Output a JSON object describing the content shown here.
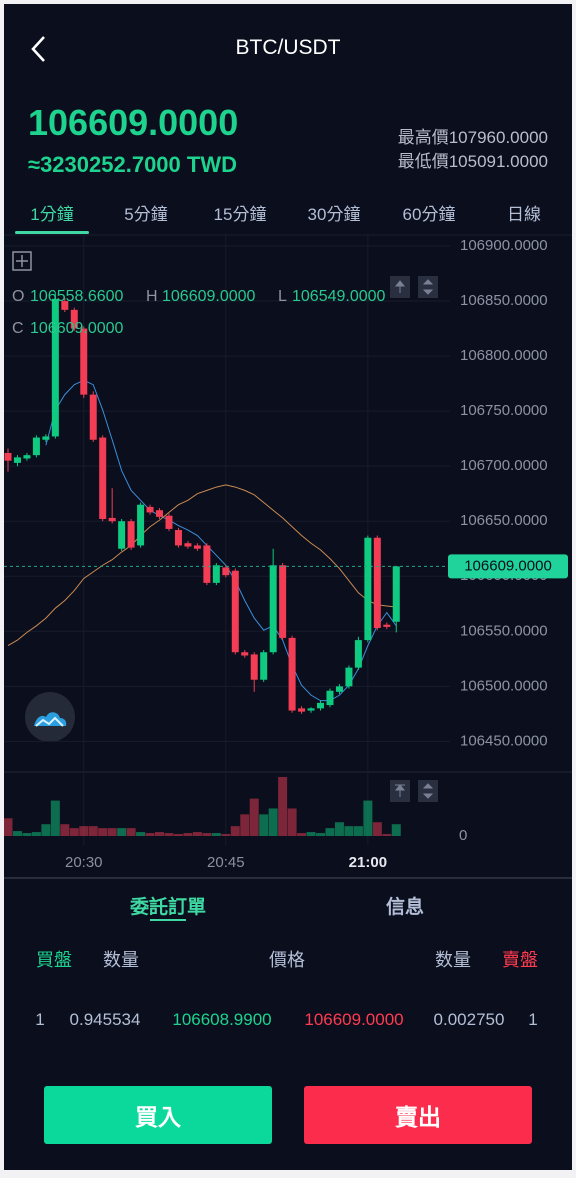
{
  "header": {
    "title": "BTC/USDT"
  },
  "ticker": {
    "price": "106609.0000",
    "converted": "≈3230252.7000 TWD",
    "high": "最高價107960.0000",
    "low": "最低價105091.0000"
  },
  "intervals": {
    "tabs": [
      "1分鐘",
      "5分鐘",
      "15分鐘",
      "30分鐘",
      "60分鐘",
      "日線"
    ],
    "active": 0
  },
  "chart": {
    "type": "candlestick",
    "grid": true,
    "up_color": "#0ecb81",
    "down_color": "#f23d55",
    "categories": [
      null,
      null,
      null,
      null,
      null,
      null,
      null,
      null,
      "20:30",
      null,
      null,
      null,
      null,
      null,
      null,
      null,
      null,
      null,
      null,
      null,
      null,
      null,
      null,
      "20:45",
      null,
      null,
      null,
      null,
      null,
      null,
      null,
      null,
      null,
      null,
      null,
      null,
      null,
      null,
      "21:00",
      null,
      null,
      null
    ],
    "open": [
      106712,
      106703,
      106707,
      106710,
      106724,
      106727,
      106850,
      106842,
      106825,
      106765,
      106726,
      106653,
      106625,
      106650,
      106628,
      106663,
      106660,
      106655,
      106642,
      106630,
      106628,
      106628,
      106594,
      106608,
      106605,
      106531,
      106529,
      106506,
      106531,
      106610,
      106544,
      106480,
      106478,
      106480,
      106483,
      106495,
      106500,
      106517,
      106542,
      106635,
      106556,
      106558.66
    ],
    "high": [
      106716,
      106710,
      106712,
      106728,
      106729,
      106858,
      106853,
      106844,
      106827,
      106768,
      106728,
      106680,
      106652,
      106652,
      106667,
      106665,
      106662,
      106657,
      106644,
      106632,
      106630,
      106630,
      106612,
      106610,
      106607,
      106533,
      106531,
      106533,
      106625,
      106612,
      106546,
      106482,
      106481,
      106487,
      106498,
      106502,
      106519,
      106545,
      106637,
      106637,
      106558,
      106609
    ],
    "low": [
      106695,
      106700,
      106705,
      106708,
      106722,
      106725,
      106840,
      106823,
      106762,
      106722,
      106650,
      106648,
      106623,
      106624,
      106626,
      106656,
      106652,
      106641,
      106626,
      106625,
      106623,
      106592,
      106592,
      106599,
      106529,
      106526,
      106495,
      106504,
      106529,
      106542,
      106476,
      106475,
      106476,
      106478,
      106481,
      106493,
      106498,
      106515,
      106540,
      106551,
      106552,
      106549
    ],
    "close": [
      106705,
      106708,
      106710,
      106726,
      106727,
      106852,
      106842,
      106825,
      106765,
      106724,
      106652,
      106650,
      106650,
      106626,
      106665,
      106658,
      106654,
      106643,
      106628,
      106627,
      106625,
      106594,
      106610,
      106601,
      106531,
      106528,
      106506,
      106531,
      106610,
      106544,
      106478,
      106477,
      106480,
      106485,
      106496,
      106500,
      106517,
      106542,
      106635,
      106553,
      106554,
      106609
    ],
    "ylim": [
      106424,
      106910
    ],
    "yticks": [
      {
        "value": 106900,
        "label": "106900.0000"
      },
      {
        "value": 106850,
        "label": "106850.0000"
      },
      {
        "value": 106800,
        "label": "106800.0000"
      },
      {
        "value": 106750,
        "label": "106750.0000"
      },
      {
        "value": 106700,
        "label": "106700.0000"
      },
      {
        "value": 106650,
        "label": "106650.0000"
      },
      {
        "value": 106600,
        "label": "106600.0000"
      },
      {
        "value": 106550,
        "label": "106550.0000"
      },
      {
        "value": 106500,
        "label": "106500.0000"
      },
      {
        "value": 106450,
        "label": "106450.0000"
      }
    ],
    "last_price": {
      "value": 106609,
      "label": "106609.0000"
    },
    "ohlc_legend": {
      "labels": [
        "O",
        "H",
        "L",
        "C"
      ],
      "values": [
        "106558.6600",
        "106609.0000",
        "106549.0000",
        "106609.0000"
      ]
    },
    "moving_averages": [
      {
        "color": "#3b8fdc",
        "values": [
          null,
          null,
          null,
          null,
          106719,
          106751,
          106765,
          106774,
          106778,
          106774,
          106751,
          106724,
          106696,
          106678,
          106669,
          106660,
          106655,
          106651,
          106646,
          106642,
          106637,
          106628,
          106619,
          106610,
          106596,
          106578,
          106562,
          106551,
          106555,
          106542,
          106519,
          106501,
          106492,
          106487,
          106487,
          106492,
          106501,
          106516,
          106537,
          106555,
          106567,
          106555
        ]
      },
      {
        "color": "#c98b52",
        "values": [
          106537,
          106542,
          106549,
          106555,
          106562,
          106571,
          106578,
          106587,
          106598,
          106604,
          106610,
          106615,
          106622,
          106628,
          106637,
          106645,
          106651,
          106658,
          106665,
          106669,
          106675,
          106678,
          106681,
          106683,
          106681,
          106678,
          106674,
          106667,
          106660,
          106653,
          106645,
          106637,
          106630,
          106624,
          106616,
          106607,
          106596,
          106585,
          106578,
          106574,
          106573,
          106572
        ]
      }
    ],
    "volume": {
      "values": [
        18,
        5,
        3,
        4,
        12,
        36,
        12,
        8,
        10,
        10,
        8,
        8,
        8,
        8,
        4,
        3,
        4,
        3,
        2,
        3,
        4,
        3,
        3,
        2,
        10,
        22,
        38,
        22,
        28,
        60,
        28,
        3,
        4,
        3,
        8,
        14,
        10,
        10,
        36,
        14,
        2,
        12
      ],
      "ylim": [
        0,
        62
      ],
      "yticks": [
        0
      ]
    }
  },
  "order_tabs": {
    "tabs": [
      "委託訂單",
      "信息"
    ],
    "active": 0
  },
  "order_book": {
    "columns": [
      "買盤",
      "数量",
      "價格",
      "数量",
      "賣盤"
    ],
    "rows": [
      [
        "1",
        "0.945534",
        "106608.9900",
        "106609.0000",
        "0.002750",
        "1"
      ]
    ]
  },
  "actions": {
    "buy": "買入",
    "sell": "賣出"
  }
}
